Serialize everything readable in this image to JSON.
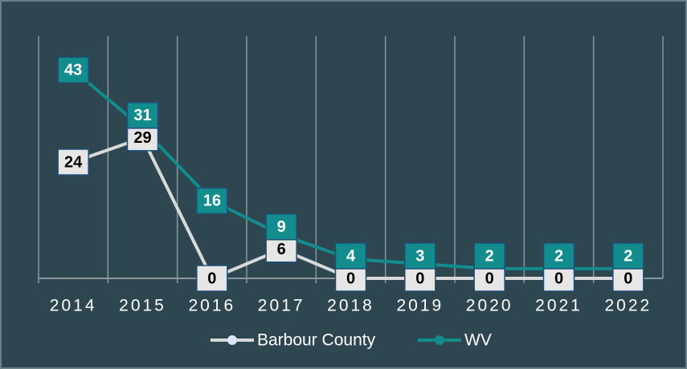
{
  "chart_data": {
    "type": "line",
    "categories": [
      "2014",
      "2015",
      "2016",
      "2017",
      "2018",
      "2019",
      "2020",
      "2021",
      "2022"
    ],
    "series": [
      {
        "name": "Barbour County",
        "color": "#d9d9d9",
        "values": [
          24,
          29,
          0,
          6,
          0,
          0,
          0,
          0,
          0
        ]
      },
      {
        "name": "WV",
        "color": "#128c8c",
        "values": [
          43,
          31,
          16,
          9,
          4,
          3,
          2,
          2,
          2
        ]
      }
    ],
    "ylim": [
      0,
      50
    ],
    "grid": true,
    "legend": "bottom"
  }
}
